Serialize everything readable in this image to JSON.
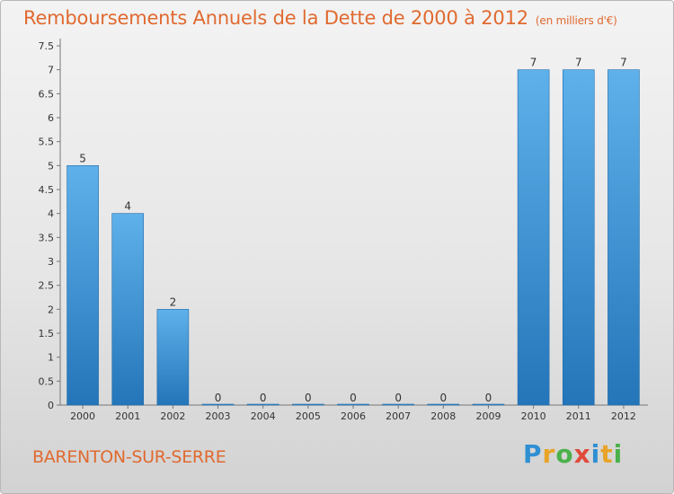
{
  "title": "Remboursements Annuels de la Dette de 2000 à 2012",
  "unit": "(en milliers d'€)",
  "commune": "BARENTON-SUR-SERRE",
  "brand": {
    "letters": [
      "P",
      "r",
      "o",
      "x",
      "i",
      "t",
      "i"
    ],
    "colors": [
      "#2f8fd3",
      "#e8a427",
      "#4bb14b",
      "#e04a3a",
      "#2f8fd3",
      "#e8a427",
      "#4bb14b"
    ]
  },
  "colors": {
    "bar_top": "#5eb1ea",
    "bar_bottom": "#2475b9",
    "title": "#e06a30"
  },
  "chart_data": {
    "type": "bar",
    "categories": [
      "2000",
      "2001",
      "2002",
      "2003",
      "2004",
      "2005",
      "2006",
      "2007",
      "2008",
      "2009",
      "2010",
      "2011",
      "2012"
    ],
    "values": [
      5,
      4,
      2,
      0,
      0,
      0,
      0,
      0,
      0,
      0,
      7,
      7,
      7
    ],
    "data_labels": [
      "5",
      "4",
      "2",
      "0",
      "0",
      "0",
      "0",
      "0",
      "0",
      "0",
      "7",
      "7",
      "7"
    ],
    "ylim": [
      0,
      7.5
    ],
    "yticks": [
      "0",
      "0.5",
      "1",
      "1.5",
      "2",
      "2.5",
      "3",
      "3.5",
      "4",
      "4.5",
      "5",
      "5.5",
      "6",
      "6.5",
      "7",
      "7.5"
    ],
    "grid": false
  }
}
